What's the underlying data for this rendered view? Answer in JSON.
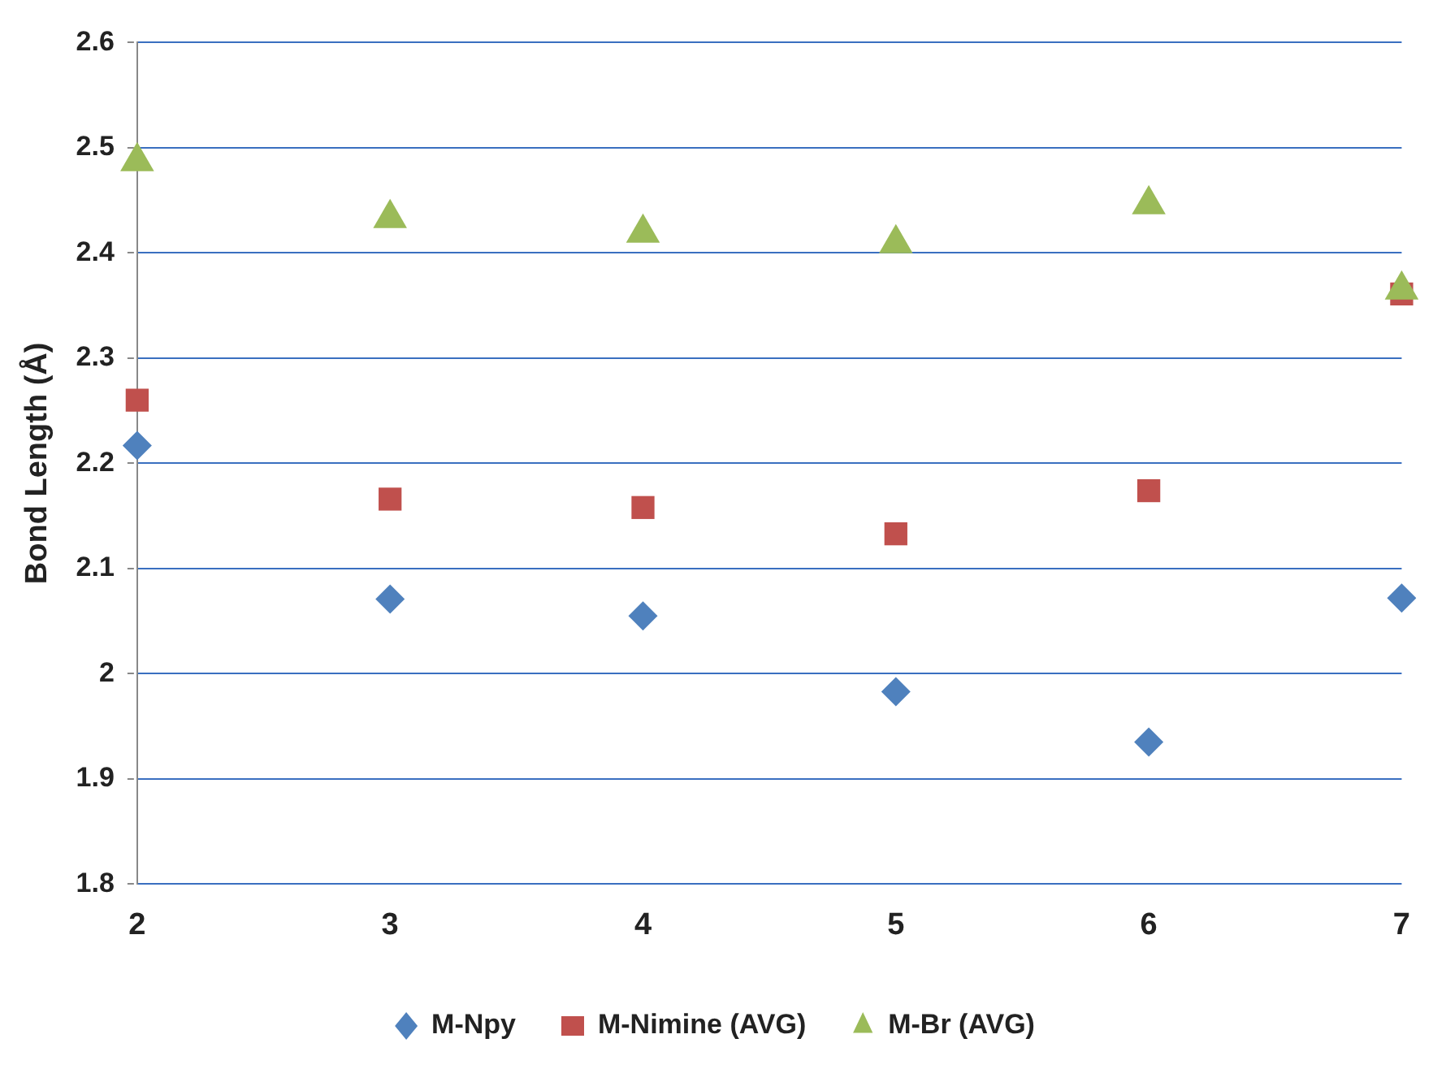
{
  "chart_data": {
    "type": "scatter",
    "ylabel": "Bond Length (Å)",
    "categories": [
      "2",
      "3",
      "4",
      "5",
      "6",
      "7"
    ],
    "series": [
      {
        "name": "M-Npy",
        "color": "#4f81bd",
        "marker": "diamond",
        "values": [
          2.217,
          2.071,
          2.055,
          1.983,
          1.935,
          2.072
        ]
      },
      {
        "name": "M-Nimine (AVG)",
        "color": "#c0504d",
        "marker": "square",
        "values": [
          2.26,
          2.166,
          2.158,
          2.133,
          2.174,
          2.361
        ]
      },
      {
        "name": "M-Br (AVG)",
        "color": "#9bbb59",
        "marker": "triangle",
        "values": [
          2.487,
          2.433,
          2.419,
          2.409,
          2.446,
          2.365
        ]
      }
    ],
    "ylim": [
      1.8,
      2.6
    ],
    "yticks": [
      1.8,
      1.9,
      2,
      2.1,
      2.2,
      2.3,
      2.4,
      2.5,
      2.6
    ],
    "grid": "y",
    "legend": "bottom"
  }
}
